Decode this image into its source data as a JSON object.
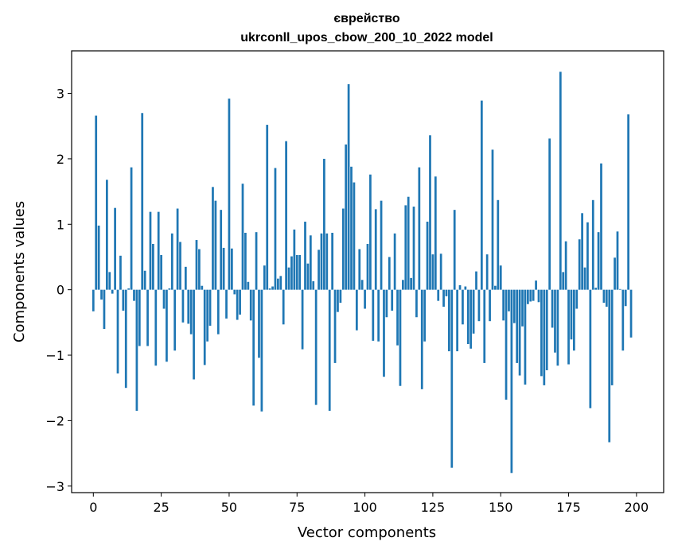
{
  "chart_data": {
    "type": "bar",
    "title": "єврейство",
    "subtitle": "ukrconll_upos_cbow_200_10_2022 model",
    "xlabel": "Vector components",
    "ylabel": "Components values",
    "xlim": [
      -8,
      210
    ],
    "ylim": [
      -3.1,
      3.65
    ],
    "xticks": [
      0,
      25,
      50,
      75,
      100,
      125,
      150,
      175,
      200
    ],
    "yticks": [
      -3,
      -2,
      -1,
      0,
      1,
      2,
      3
    ],
    "ytick_labels": [
      "−3",
      "−2",
      "−1",
      "0",
      "1",
      "2",
      "3"
    ],
    "grid": false,
    "colors": {
      "bar": "#1f77b4",
      "axis": "#000000"
    },
    "series": [
      {
        "values": [
          -0.33,
          2.66,
          0.98,
          -0.15,
          -0.6,
          1.68,
          0.27,
          -0.06,
          1.25,
          -1.28,
          0.52,
          -0.32,
          -1.5,
          0.02,
          1.87,
          -0.17,
          -1.85,
          -0.86,
          2.7,
          0.29,
          -0.86,
          1.19,
          0.7,
          -1.16,
          1.19,
          0.53,
          -0.29,
          -1.1,
          0.02,
          0.86,
          -0.93,
          1.24,
          0.73,
          -0.5,
          0.35,
          -0.52,
          -0.68,
          -1.37,
          0.76,
          0.62,
          0.06,
          -1.15,
          -0.79,
          -0.55,
          1.57,
          1.36,
          -0.68,
          1.22,
          0.64,
          -0.44,
          2.92,
          0.63,
          -0.07,
          -0.46,
          -0.38,
          1.62,
          0.87,
          0.12,
          -0.47,
          -1.77,
          0.88,
          -1.04,
          -1.86,
          0.37,
          2.52,
          0.02,
          0.05,
          1.86,
          0.17,
          0.21,
          -0.53,
          2.27,
          0.34,
          0.51,
          0.92,
          0.53,
          0.53,
          -0.91,
          1.04,
          0.4,
          0.83,
          0.13,
          -1.76,
          0.61,
          0.86,
          2.0,
          0.86,
          -1.85,
          0.87,
          -1.12,
          -0.34,
          -0.2,
          1.24,
          2.22,
          3.14,
          1.88,
          1.64,
          -0.62,
          0.62,
          0.15,
          -0.29,
          0.7,
          1.76,
          -0.78,
          1.23,
          -0.79,
          1.36,
          -1.33,
          -0.42,
          0.5,
          -0.32,
          0.86,
          -0.85,
          -1.47,
          0.15,
          1.29,
          1.42,
          0.18,
          1.27,
          -0.42,
          1.87,
          -1.52,
          -0.79,
          1.04,
          2.36,
          0.54,
          1.73,
          -0.17,
          0.55,
          -0.26,
          -0.1,
          -0.94,
          -2.72,
          1.22,
          -0.94,
          0.07,
          -0.53,
          0.05,
          -0.83,
          -0.9,
          -0.67,
          0.28,
          -0.48,
          2.89,
          -1.12,
          0.54,
          -0.48,
          2.14,
          0.06,
          1.37,
          0.37,
          -0.47,
          -1.68,
          -0.33,
          -2.8,
          -0.51,
          -1.12,
          -1.31,
          -0.56,
          -1.45,
          -0.22,
          -0.18,
          -0.17,
          0.14,
          -0.19,
          -1.32,
          -1.46,
          -1.23,
          2.31,
          -0.58,
          -0.96,
          -1.16,
          3.33,
          0.27,
          0.74,
          -1.14,
          -0.76,
          -0.93,
          -0.29,
          0.77,
          1.17,
          0.34,
          1.03,
          -1.81,
          1.37,
          0.03,
          0.88,
          1.93,
          -0.2,
          -0.26,
          -2.33,
          -1.46,
          0.49,
          0.89,
          0.01,
          -0.93,
          -0.25,
          2.68,
          -0.73
        ]
      }
    ]
  }
}
